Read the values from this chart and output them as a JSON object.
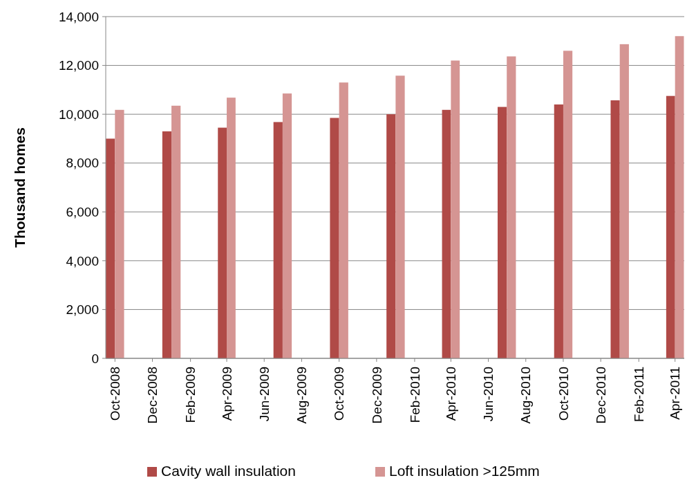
{
  "chart_data": {
    "type": "bar",
    "ylabel": "Thousand homes",
    "x": [
      "2008-10",
      "2009-01",
      "2009-04",
      "2009-07",
      "2009-10",
      "2010-01",
      "2010-04",
      "2010-07",
      "2010-10",
      "2011-01",
      "2011-04"
    ],
    "series": [
      {
        "name": "Cavity wall insulation",
        "color": "#b04a47",
        "values": [
          9000,
          9300,
          9450,
          9680,
          9850,
          10000,
          10180,
          10300,
          10400,
          10570,
          10750
        ]
      },
      {
        "name": "Loft insulation >125mm",
        "color": "#d59593",
        "values": [
          10180,
          10350,
          10680,
          10850,
          11300,
          11580,
          12200,
          12370,
          12600,
          12870,
          13200
        ]
      }
    ],
    "xlim": [
      "2008-09-16",
      "2011-04-16"
    ],
    "xticks": [
      {
        "value": "2008-10",
        "label": "Oct-2008"
      },
      {
        "value": "2008-12",
        "label": "Dec-2008"
      },
      {
        "value": "2009-02",
        "label": "Feb-2009"
      },
      {
        "value": "2009-04",
        "label": "Apr-2009"
      },
      {
        "value": "2009-06",
        "label": "Jun-2009"
      },
      {
        "value": "2009-08",
        "label": "Aug-2009"
      },
      {
        "value": "2009-10",
        "label": "Oct-2009"
      },
      {
        "value": "2009-12",
        "label": "Dec-2009"
      },
      {
        "value": "2010-02",
        "label": "Feb-2010"
      },
      {
        "value": "2010-04",
        "label": "Apr-2010"
      },
      {
        "value": "2010-06",
        "label": "Jun-2010"
      },
      {
        "value": "2010-08",
        "label": "Aug-2010"
      },
      {
        "value": "2010-10",
        "label": "Oct-2010"
      },
      {
        "value": "2010-12",
        "label": "Dec-2010"
      },
      {
        "value": "2011-02",
        "label": "Feb-2011"
      },
      {
        "value": "2011-04",
        "label": "Apr-2011"
      }
    ],
    "ylim": [
      0,
      14000
    ],
    "yticks": [
      {
        "value": 0,
        "label": "0"
      },
      {
        "value": 2000,
        "label": "2,000"
      },
      {
        "value": 4000,
        "label": "4,000"
      },
      {
        "value": 6000,
        "label": "6,000"
      },
      {
        "value": 8000,
        "label": "8,000"
      },
      {
        "value": 10000,
        "label": "10,000"
      },
      {
        "value": 12000,
        "label": "12,000"
      },
      {
        "value": 14000,
        "label": "14,000"
      }
    ],
    "grid": "y",
    "legend": "bottom"
  }
}
